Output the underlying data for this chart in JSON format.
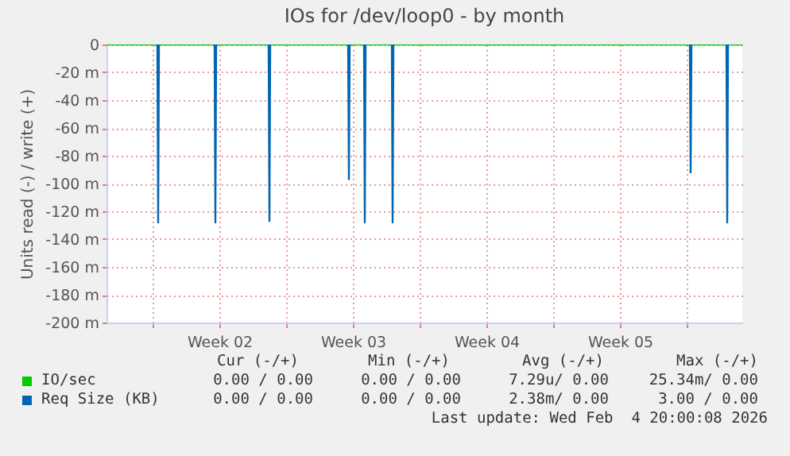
{
  "chart_data": {
    "type": "line",
    "title": "IOs for /dev/loop0 - by month",
    "ylabel": "Units read (-) / write (+)",
    "xlim": [
      "2026-01-02T14:00",
      "2026-02-04T22:00"
    ],
    "xticks": [
      {
        "value": "2026-01-05",
        "label": null
      },
      {
        "value": "2026-01-08T12:00",
        "label": "Week 02"
      },
      {
        "value": "2026-01-12",
        "label": null
      },
      {
        "value": "2026-01-15T12:00",
        "label": "Week 03"
      },
      {
        "value": "2026-01-19",
        "label": null
      },
      {
        "value": "2026-01-22T12:00",
        "label": "Week 04"
      },
      {
        "value": "2026-01-26",
        "label": null
      },
      {
        "value": "2026-01-29T12:00",
        "label": "Week 05"
      },
      {
        "value": "2026-02-02",
        "label": null
      }
    ],
    "ylim": [
      -200,
      0
    ],
    "yticks": [
      0,
      {
        "value": -20,
        "label": "-20 m"
      },
      {
        "value": -40,
        "label": "-40 m"
      },
      {
        "value": -60,
        "label": "-60 m"
      },
      {
        "value": -80,
        "label": "-80 m"
      },
      {
        "value": -100,
        "label": "-100 m"
      },
      {
        "value": -120,
        "label": "-120 m"
      },
      {
        "value": -140,
        "label": "-140 m"
      },
      {
        "value": -160,
        "label": "-160 m"
      },
      {
        "value": -180,
        "label": "-180 m"
      },
      {
        "value": -200,
        "label": "-200 m"
      }
    ],
    "grid": true,
    "legend": "bottom",
    "series": [
      {
        "name": "IO/sec",
        "color": "#00cc00",
        "x": [
          "2026-01-02T14:00",
          "2026-02-04T22:00"
        ],
        "values": [
          0,
          0
        ]
      },
      {
        "name": "Req Size (KB)",
        "color": "#0066b3",
        "x": [
          "2026-01-05T06:00",
          "2026-01-05T07:00",
          "2026-01-05T08:00",
          "2026-01-06T00:00",
          "2026-01-08T06:00",
          "2026-01-08T07:00",
          "2026-01-08T08:00",
          "2026-01-09T00:00",
          "2026-01-11T02:00",
          "2026-01-11T03:00",
          "2026-01-11T04:00",
          "2026-01-12T00:00",
          "2026-01-15T06:00",
          "2026-01-15T07:00",
          "2026-01-15T08:00",
          "2026-01-15T12:00",
          "2026-01-16T02:00",
          "2026-01-16T03:00",
          "2026-01-16T04:00",
          "2026-01-17T00:00",
          "2026-01-17T13:00",
          "2026-01-17T14:00",
          "2026-01-17T15:00",
          "2026-01-20T00:00",
          "2026-02-02T04:00",
          "2026-02-02T05:00",
          "2026-02-02T06:00",
          "2026-02-03T00:00",
          "2026-02-04T02:00",
          "2026-02-04T03:00",
          "2026-02-04T04:00"
        ],
        "values": [
          0,
          -128,
          0,
          null,
          0,
          -128,
          0,
          null,
          0,
          -127,
          0,
          null,
          0,
          -97,
          0,
          null,
          0,
          -128,
          0,
          null,
          0,
          -128,
          0,
          null,
          0,
          -92,
          0,
          null,
          0,
          -128,
          0
        ]
      }
    ],
    "annotations": [
      "Cur (-/+)",
      "Min (-/+)",
      "Avg (-/+)",
      "Max (-/+)",
      "0.00 / 0.00",
      "0.00 / 0.00",
      "7.29u/ 0.00",
      "25.34m/ 0.00",
      "0.00 / 0.00",
      "0.00 / 0.00",
      "2.38m/ 0.00",
      "3.00 / 0.00",
      "Last update: Wed Feb  4 20:00:08 2026"
    ]
  }
}
